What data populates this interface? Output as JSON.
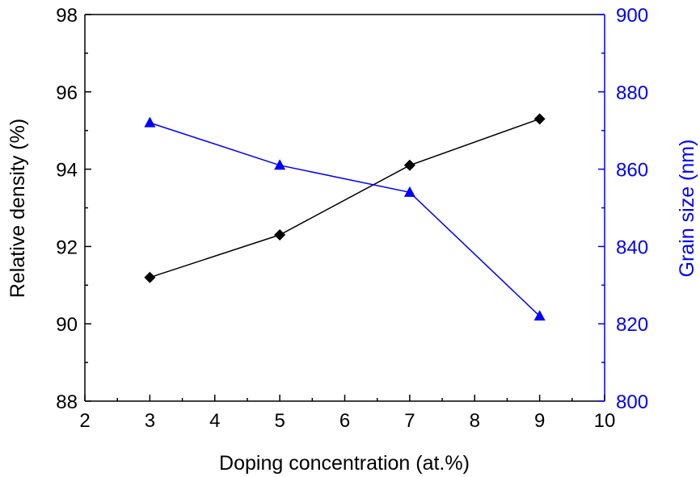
{
  "chart_data": {
    "type": "line",
    "xlabel": "Doping concentration (at.%)",
    "ylabel_left": "Relative density (%)",
    "ylabel_right": "Grain size (nm)",
    "xlim": [
      2,
      10
    ],
    "ylim_left": [
      88,
      98
    ],
    "ylim_right": [
      800,
      900
    ],
    "x_ticks": [
      2,
      3,
      4,
      5,
      6,
      7,
      8,
      9,
      10
    ],
    "y_left_ticks": [
      88,
      90,
      92,
      94,
      96,
      98
    ],
    "y_right_ticks": [
      800,
      820,
      840,
      860,
      880,
      900
    ],
    "grid": false,
    "legend": "none",
    "series": [
      {
        "axis": "left",
        "marker": "diamond",
        "color": "#000000",
        "x": [
          3,
          5,
          7,
          9
        ],
        "y": [
          91.2,
          92.3,
          94.1,
          95.3
        ]
      },
      {
        "axis": "right",
        "marker": "triangle",
        "color": "#0000ff",
        "x": [
          3,
          5,
          7,
          9
        ],
        "y": [
          872,
          861,
          854,
          822
        ]
      }
    ]
  }
}
